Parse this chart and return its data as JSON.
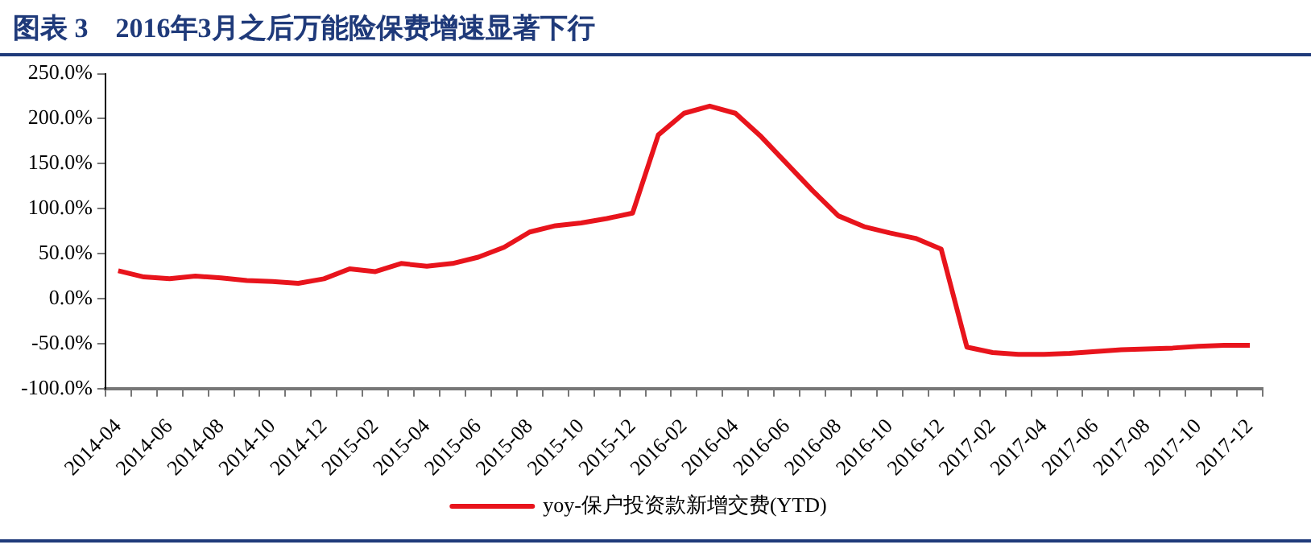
{
  "chart_data": {
    "type": "line",
    "title": "图表 3　2016年3月之后万能险保费增速显著下行",
    "categories": [
      "2014-04",
      null,
      "2014-06",
      null,
      "2014-08",
      null,
      "2014-10",
      null,
      "2014-12",
      null,
      "2015-02",
      null,
      "2015-04",
      null,
      "2015-06",
      null,
      "2015-08",
      null,
      "2015-10",
      null,
      "2015-12",
      null,
      "2016-02",
      null,
      "2016-04",
      null,
      "2016-06",
      null,
      "2016-08",
      null,
      "2016-10",
      null,
      "2016-12",
      null,
      "2017-02",
      null,
      "2017-04",
      null,
      "2017-06",
      null,
      "2017-08",
      null,
      "2017-10",
      null,
      "2017-12"
    ],
    "series": [
      {
        "name": "yoy-保户投资款新增交费(YTD)",
        "color": "#e8141c",
        "values": [
          31,
          24,
          22,
          25,
          23,
          20,
          19,
          17,
          22,
          33,
          30,
          39,
          36,
          39,
          46,
          57,
          74,
          81,
          84,
          89,
          95,
          182,
          206,
          214,
          206,
          180,
          150,
          120,
          92,
          80,
          73,
          67,
          55,
          -54,
          -60,
          -62,
          -62,
          -61,
          -59,
          -57,
          -56,
          -55,
          -53,
          -52,
          -52
        ]
      }
    ],
    "ylim": [
      -100,
      250
    ],
    "yticks": [
      {
        "value": -100,
        "label": "-100.0%"
      },
      {
        "value": -50,
        "label": "-50.0%"
      },
      {
        "value": 0,
        "label": "0.0%"
      },
      {
        "value": 50,
        "label": "50.0%"
      },
      {
        "value": 100,
        "label": "100.0%"
      },
      {
        "value": 150,
        "label": "150.0%"
      },
      {
        "value": 200,
        "label": "200.0%"
      },
      {
        "value": 250,
        "label": "250.0%"
      }
    ],
    "grid": false,
    "legend": "bottom",
    "marker": "none",
    "line_style": "solid"
  }
}
